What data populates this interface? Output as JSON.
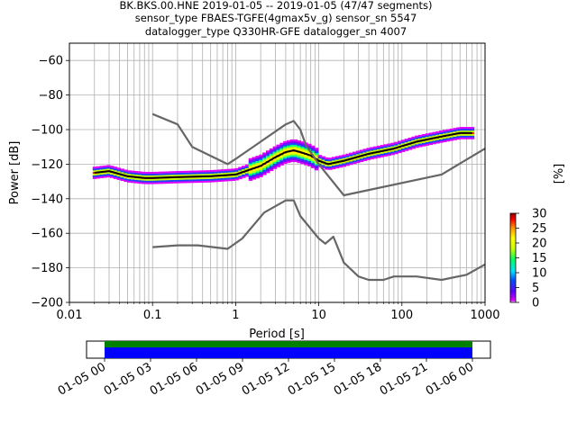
{
  "chart_data": [
    {
      "type": "line",
      "title_lines": [
        "BK.BKS.00.HNE   2019-01-05 -- 2019-01-05  (47/47 segments)",
        "sensor_type FBAES-TGFE(4gmax5v_g) sensor_sn 5547",
        "datalogger_type Q330HR-GFE datalogger_sn 4007"
      ],
      "xlabel": "Period [s]",
      "ylabel": "Power [dB]",
      "xscale": "log",
      "xlim": [
        0.01,
        1000
      ],
      "ylim": [
        -200,
        -50
      ],
      "x_tick_labels": [
        "0.01",
        "0.1",
        "1",
        "10",
        "100",
        "1000"
      ],
      "x_ticks": [
        0.01,
        0.1,
        1,
        10,
        100,
        1000
      ],
      "y_ticks": [
        -200,
        -180,
        -160,
        -140,
        -120,
        -100,
        -80,
        -60
      ],
      "y_tick_labels": [
        "−200",
        "−180",
        "−160",
        "−140",
        "−120",
        "−100",
        "−80",
        "−60"
      ],
      "grid": true,
      "colorbar": {
        "label": "[%]",
        "range": [
          0,
          30
        ],
        "ticks": [
          0,
          5,
          10,
          15,
          20,
          25,
          30
        ],
        "tick_labels": [
          "0",
          "5",
          "10",
          "15",
          "20",
          "25",
          "30"
        ]
      },
      "series": [
        {
          "color": "#000000",
          "x": [
            0.02,
            0.03,
            0.05,
            0.08,
            0.1,
            0.2,
            0.5,
            1,
            2,
            3,
            4,
            5,
            6,
            8,
            10,
            13,
            20,
            40,
            80,
            150,
            300,
            500,
            700
          ],
          "y": [
            -125,
            -124,
            -127,
            -128,
            -128,
            -127.5,
            -127,
            -126,
            -121,
            -116,
            -113,
            -112,
            -113,
            -115,
            -118,
            -120,
            -118,
            -114,
            -111,
            -107,
            -104,
            -102,
            -102
          ]
        },
        {
          "color": "#666666",
          "x": [
            0.1,
            0.2,
            0.3,
            0.8,
            1,
            2,
            4,
            5,
            6,
            7,
            10,
            20,
            300,
            1000
          ],
          "y": [
            -91,
            -97,
            -110,
            -120,
            -117,
            -107,
            -97,
            -95,
            -100,
            -109,
            -120,
            -138,
            -126,
            -111
          ]
        },
        {
          "color": "#666666",
          "x": [
            0.1,
            0.2,
            0.35,
            0.8,
            1.2,
            2.2,
            4,
            5,
            6,
            10,
            12,
            15,
            20,
            30,
            40,
            60,
            80,
            100,
            150,
            300,
            600,
            1000
          ],
          "y": [
            -168,
            -167,
            -167,
            -169,
            -163,
            -148,
            -141,
            -141,
            -150,
            -163,
            -166,
            -162,
            -177,
            -185,
            -187,
            -187,
            -185,
            -185,
            -185,
            -187,
            -184,
            -178
          ]
        }
      ]
    },
    {
      "type": "bar",
      "x_tick_labels": [
        "01-05 00",
        "01-05 03",
        "01-05 06",
        "01-05 09",
        "01-05 12",
        "01-05 15",
        "01-05 18",
        "01-05 21",
        "01-06 00"
      ],
      "series": [
        {
          "color": "#008000",
          "values": [
            1
          ]
        },
        {
          "color": "#0000ff",
          "values": [
            1
          ]
        }
      ]
    }
  ]
}
